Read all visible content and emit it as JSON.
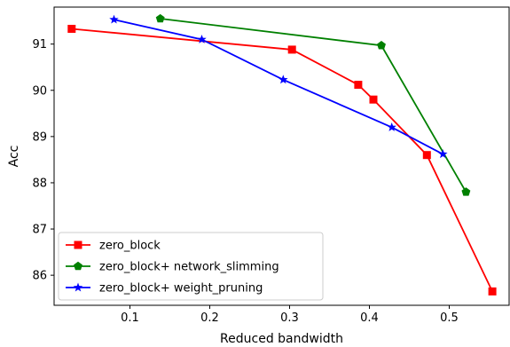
{
  "chart_data": {
    "type": "line",
    "xlabel": "Reduced bandwidth",
    "ylabel": "Acc",
    "xlim": [
      0.005,
      0.575
    ],
    "ylim": [
      85.35,
      91.8
    ],
    "xticks": [
      0.1,
      0.2,
      0.3,
      0.4,
      0.5
    ],
    "xtick_labels": [
      "0.1",
      "0.2",
      "0.3",
      "0.4",
      "0.5"
    ],
    "yticks": [
      86,
      87,
      88,
      89,
      90,
      91
    ],
    "ytick_labels": [
      "86",
      "87",
      "88",
      "89",
      "90",
      "91"
    ],
    "grid": false,
    "legend": "lower-left",
    "series": [
      {
        "name": "zero_block",
        "color": "#ff0000",
        "marker": "square",
        "x": [
          0.027,
          0.303,
          0.386,
          0.405,
          0.472,
          0.554
        ],
        "y": [
          91.33,
          90.88,
          90.12,
          89.8,
          88.6,
          85.65
        ]
      },
      {
        "name": "zero_block+ network_slimming",
        "color": "#008000",
        "marker": "pentagon",
        "x": [
          0.138,
          0.415,
          0.521
        ],
        "y": [
          91.55,
          90.97,
          87.8
        ]
      },
      {
        "name": "zero_block+ weight_pruning",
        "color": "#0000ff",
        "marker": "star",
        "x": [
          0.08,
          0.19,
          0.292,
          0.428,
          0.492
        ],
        "y": [
          91.53,
          91.1,
          90.23,
          89.2,
          88.62
        ]
      }
    ]
  }
}
